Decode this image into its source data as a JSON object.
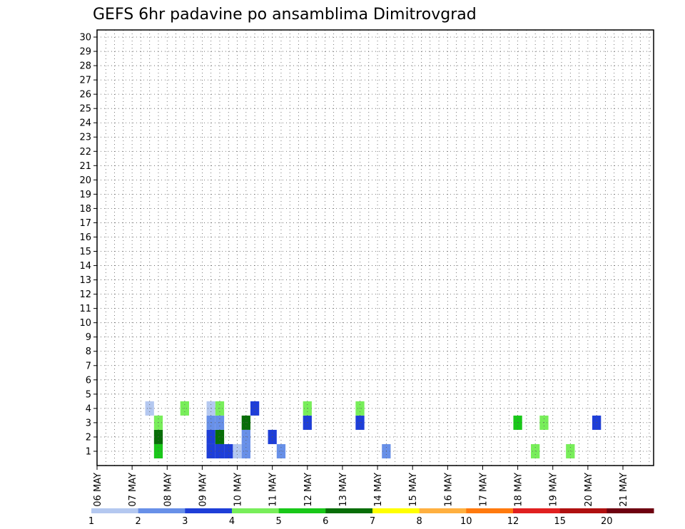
{
  "chart_data": {
    "type": "heatmap",
    "title": "GEFS 6hr padavine po ansamblima Dimitrovgrad",
    "x_tick_labels": [
      "06 MAY",
      "07 MAY",
      "08 MAY",
      "09 MAY",
      "10 MAY",
      "11 MAY",
      "12 MAY",
      "13 MAY",
      "14 MAY",
      "15 MAY",
      "16 MAY",
      "17 MAY",
      "18 MAY",
      "19 MAY",
      "20 MAY",
      "21 MAY"
    ],
    "y_tick_labels": [
      "1",
      "2",
      "3",
      "4",
      "5",
      "6",
      "7",
      "8",
      "9",
      "10",
      "11",
      "12",
      "13",
      "14",
      "15",
      "16",
      "17",
      "18",
      "19",
      "20",
      "21",
      "22",
      "23",
      "24",
      "25",
      "26",
      "27",
      "28",
      "29",
      "30"
    ],
    "time_steps_per_day": 4,
    "grid": true,
    "colorbar": {
      "labels": [
        "1",
        "2",
        "3",
        "4",
        "5",
        "6",
        "7",
        "8",
        "10",
        "12",
        "15",
        "20"
      ],
      "colors": [
        "#b4c8f0",
        "#6890e8",
        "#1e3ed8",
        "#78ee5a",
        "#19c819",
        "#086e08",
        "#ffff00",
        "#ffb040",
        "#ff7a0e",
        "#e02020",
        "#b01010",
        "#6e0010"
      ]
    },
    "member_colors": [
      "0000000500000333120002000000000002000000000000000040004000000000",
      "0000000600000360020030000000000000000000000000000000000000000000",
      "0000000400000220060000003000003000000000000000005004000003000000",
      "0000001000400140003000004000004000000000000000000000000000000000",
      "0000000000000000000000000000000000000000000000000000000000000000",
      "0000000000000000000000000000000000000000000000000000000000000000",
      "0000000000000000000000000000000000000000000000000000000000000000",
      "0000000000000000000000000000000000000000000000000000000000000000",
      "0000000000000000000000000000000000000000000000000000000000000000",
      "0000000000000000000000000000000000000000000000000000000000000000",
      "0000000000000000000000000000000000000000000000000000000000000000",
      "0000000000000000000000000000000000000000000000000000000000000000",
      "0000000000000000000000000000000000000000000000000000000000000000",
      "0000000000000000000000000000000000000000000000000000000000000000",
      "0000000000000000000000000000000000000000000000000000000000000000",
      "0000000000000000000000000000000000000000000000000000000000000000",
      "0000000000000000000000000000000000000000000000000000000000000000",
      "0000000000000000000000000000000000000000000000000000000000000000",
      "0000000000000000000000000000000000000000000000000000000000000000",
      "0000000000000000000000000000000000000000000000000000000000000000",
      "0000000000000000000000000000000000000000000000000000000000000000",
      "0000000000000000000000000000000000000000000000000000000000000000",
      "0000000000000000000000000000000000000000000000000000000000000000",
      "0000000000000000000000000000000000000000000000000000000000000000",
      "0000000000000000000000000000000000000000000000000000000000000000",
      "0000000000000000000000000000000000000000000000000000000000000000",
      "0000000000000000000000000000000000000000000000000000000000000000",
      "0000000000000000000000000000000000000000000000000000000000000000",
      "0000000000000000000000000000000000000000000000000000000000000000",
      "0000000000000000000000000000000000000000000000000000000000000000"
    ]
  }
}
